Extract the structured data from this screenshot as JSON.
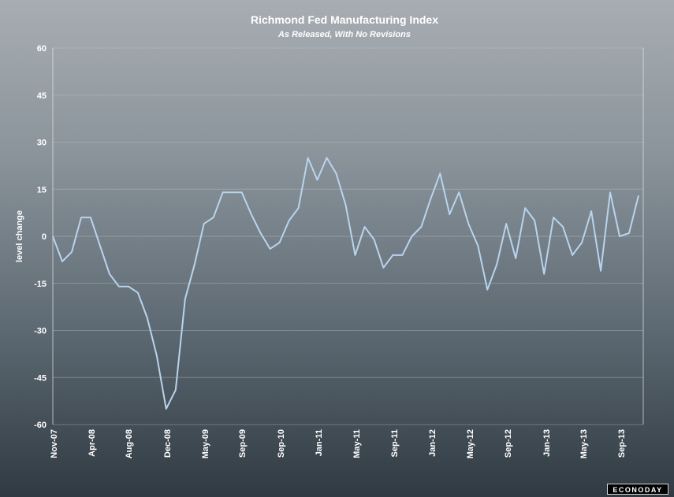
{
  "chart_data": {
    "type": "line",
    "title": "Richmond Fed Manufacturing Index",
    "subtitle": "As Released, With No Revisions",
    "xlabel": "",
    "ylabel": "level change",
    "ylim": [
      -60,
      60
    ],
    "yticks": [
      60,
      45,
      30,
      15,
      0,
      -15,
      -30,
      -45,
      -60
    ],
    "grid": true,
    "xtick_labels": [
      "Nov-07",
      "Apr-08",
      "Aug-08",
      "Dec-08",
      "May-09",
      "Sep-09",
      "Sep-10",
      "Jan-11",
      "May-11",
      "Sep-11",
      "Jan-12",
      "May-12",
      "Sep-12",
      "Jan-13",
      "May-13",
      "Sep-13"
    ],
    "series": [
      {
        "values": [
          0,
          -8,
          -5,
          6,
          6,
          -3,
          -12,
          -16,
          -16,
          -18,
          -26,
          -38,
          -55,
          -49,
          -20,
          -9,
          4,
          6,
          14,
          14,
          14,
          7,
          1,
          -4,
          -2,
          5,
          9,
          25,
          18,
          25,
          20,
          10,
          -6,
          3,
          -1,
          -10,
          -6,
          -6,
          0,
          3,
          12,
          20,
          7,
          14,
          4,
          -3,
          -17,
          -9,
          4,
          -7,
          9,
          5,
          -12,
          6,
          3,
          -6,
          -2,
          8,
          -11,
          14,
          0,
          1,
          13
        ]
      }
    ]
  },
  "branding": {
    "logo_text": "ECONODAY"
  }
}
